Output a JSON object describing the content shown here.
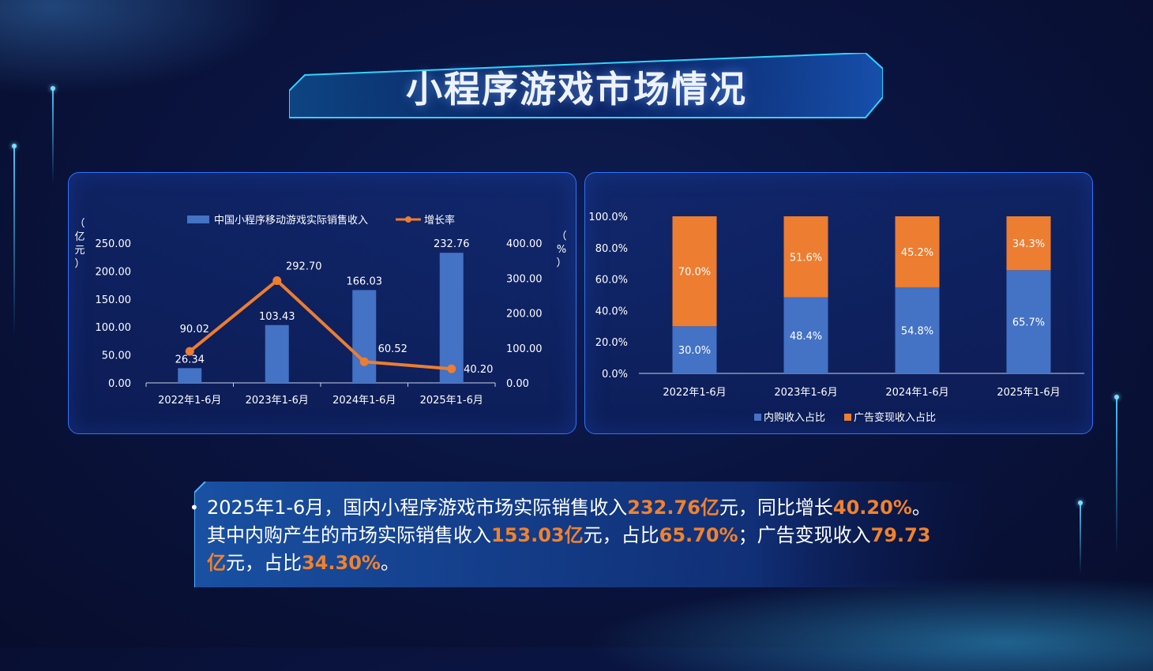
{
  "title": "小程序游戏市场情况",
  "chart_data": [
    {
      "type": "bar+line",
      "categories": [
        "2022年1-6月",
        "2023年1-6月",
        "2024年1-6月",
        "2025年1-6月"
      ],
      "series": [
        {
          "name": "中国小程序移动游戏实际销售收入",
          "type": "bar",
          "axis": "left",
          "values": [
            26.34,
            103.43,
            166.03,
            232.76
          ],
          "color": "#4472c4"
        },
        {
          "name": "增长率",
          "type": "line",
          "axis": "right",
          "values": [
            90.02,
            292.7,
            60.52,
            40.2
          ],
          "color": "#ed7d31"
        }
      ],
      "ylabel_left": "（亿元）",
      "ylabel_right": "（%）",
      "ylim_left": [
        0,
        250
      ],
      "ylim_right": [
        0,
        400
      ],
      "yticks_left": [
        "0.00",
        "50.00",
        "100.00",
        "150.00",
        "200.00",
        "250.00"
      ],
      "yticks_right": [
        "0.00",
        "100.00",
        "200.00",
        "300.00",
        "400.00"
      ],
      "legend": "top"
    },
    {
      "type": "stacked-bar",
      "categories": [
        "2022年1-6月",
        "2023年1-6月",
        "2024年1-6月",
        "2025年1-6月"
      ],
      "series": [
        {
          "name": "内购收入占比",
          "values": [
            30.0,
            48.4,
            54.8,
            65.7
          ],
          "color": "#4472c4"
        },
        {
          "name": "广告变现收入占比",
          "values": [
            70.0,
            51.6,
            45.2,
            34.3
          ],
          "color": "#ed7d31"
        }
      ],
      "ylim": [
        0,
        100
      ],
      "yticks": [
        "0.0%",
        "20.0%",
        "40.0%",
        "60.0%",
        "80.0%",
        "100.0%"
      ],
      "legend": "bottom"
    }
  ],
  "summary": {
    "bullet": "•",
    "segments": [
      {
        "t": "2025年1-6月，国内小程序游戏市场实际销售收入",
        "h": false
      },
      {
        "t": "232.76亿",
        "h": true
      },
      {
        "t": "元，同比增长",
        "h": false
      },
      {
        "t": "40.20%",
        "h": true
      },
      {
        "t": "。其中内购产生的市场实际销售收入",
        "h": false
      },
      {
        "t": "153.03亿",
        "h": true
      },
      {
        "t": "元，占比",
        "h": false
      },
      {
        "t": "65.70%",
        "h": true
      },
      {
        "t": "；广告变现收入",
        "h": false
      },
      {
        "t": "79.73亿",
        "h": true
      },
      {
        "t": "元，占比",
        "h": false
      },
      {
        "t": "34.30%",
        "h": true
      },
      {
        "t": "。",
        "h": false
      }
    ]
  }
}
